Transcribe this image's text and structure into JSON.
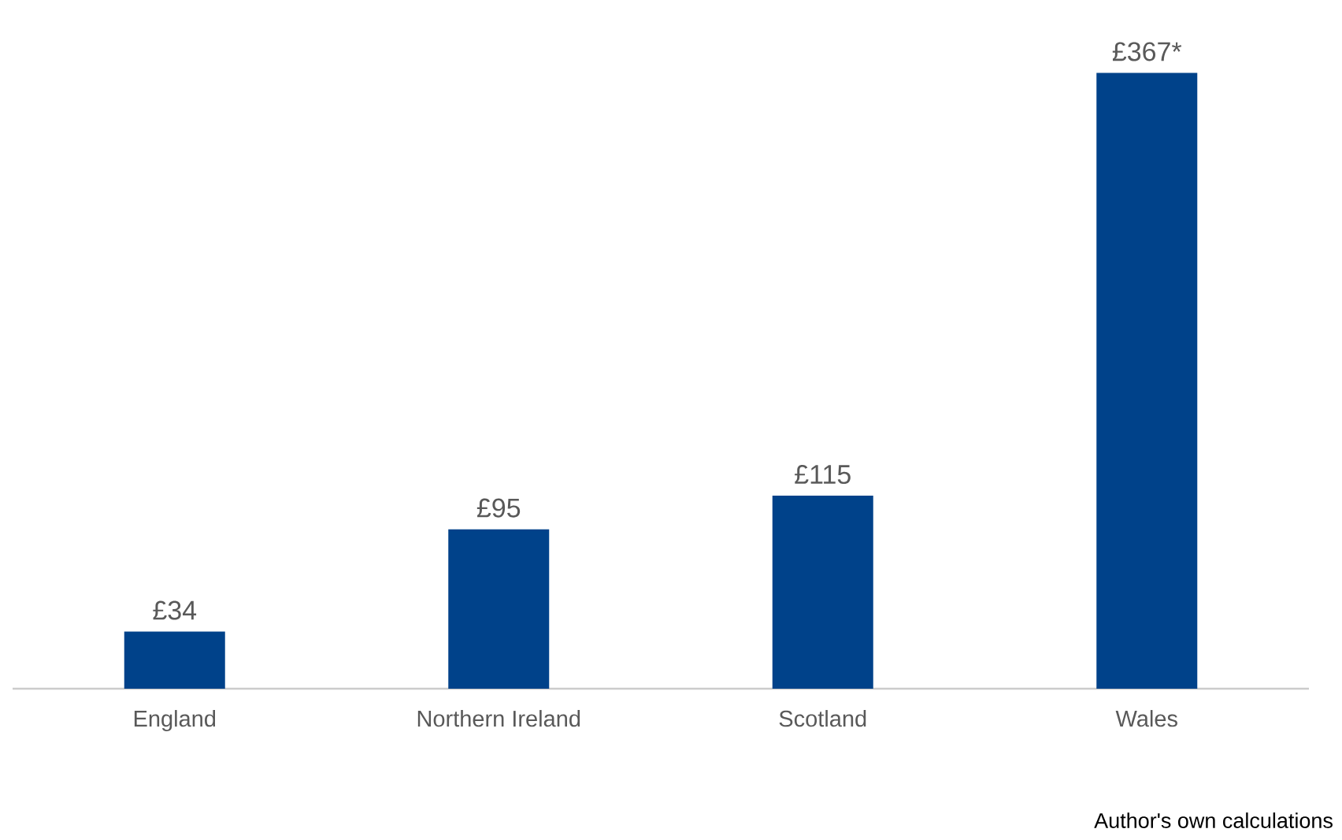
{
  "chart_data": {
    "type": "bar",
    "categories": [
      "England",
      "Northern Ireland",
      "Scotland",
      "Wales"
    ],
    "values": [
      34,
      95,
      115,
      367
    ],
    "value_labels": [
      "£34",
      "£95",
      "£115",
      "£367*"
    ],
    "color": "#00428a",
    "annotations": [
      "Author's own calculations"
    ]
  }
}
